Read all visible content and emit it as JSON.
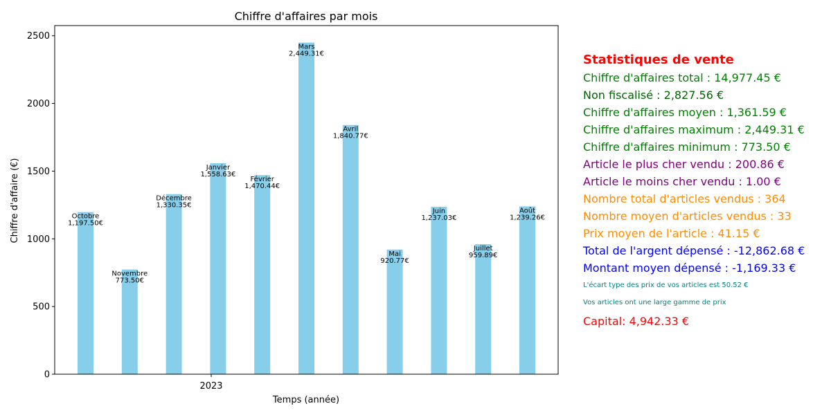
{
  "chart_data": {
    "type": "bar",
    "title": "Chiffre d'affaires par mois",
    "xlabel": "Temps (année)",
    "ylabel": "Chiffre d'affaire (€)",
    "x_tick_labels": [
      "2023"
    ],
    "ylim": [
      0,
      2575
    ],
    "yticks": [
      0,
      500,
      1000,
      1500,
      2000,
      2500
    ],
    "grid": false,
    "bar_color": "#87CEEB",
    "categories": [
      "Octobre",
      "Novembre",
      "Décembre",
      "Janvier",
      "Février",
      "Mars",
      "Avril",
      "Mai",
      "Juin",
      "Juillet",
      "Août"
    ],
    "values": [
      1197.5,
      773.5,
      1330.35,
      1558.63,
      1470.44,
      2449.31,
      1840.77,
      920.77,
      1237.03,
      959.89,
      1239.26
    ],
    "value_labels": [
      "1,197.50€",
      "773.50€",
      "1,330.35€",
      "1,558.63€",
      "1,470.44€",
      "2,449.31€",
      "1,840.77€",
      "920.77€",
      "1,237.03€",
      "959.89€",
      "1,239.26€"
    ]
  },
  "stats": {
    "title": "Statistiques de vente",
    "items": [
      {
        "text": "Chiffre d'affaires total : 14,977.45 €",
        "color": "#008000"
      },
      {
        "text": "Non fiscalisé : 2,827.56 €",
        "color": "#006400"
      },
      {
        "text": "Chiffre d'affaires moyen : 1,361.59 €",
        "color": "#008000"
      },
      {
        "text": "Chiffre d'affaires maximum : 2,449.31 €",
        "color": "#008000"
      },
      {
        "text": "Chiffre d'affaires minimum : 773.50 €",
        "color": "#008000"
      },
      {
        "text": "Article le plus cher vendu : 200.86 €",
        "color": "#800080"
      },
      {
        "text": "Article le moins cher vendu : 1.00 €",
        "color": "#800080"
      },
      {
        "text": "Nombre total d'articles vendus : 364",
        "color": "#FF8C00"
      },
      {
        "text": "Nombre moyen d'articles vendus : 33",
        "color": "#FF8C00"
      },
      {
        "text": "Prix moyen de l'article : 41.15 €",
        "color": "#FF8C00"
      },
      {
        "text": "Total de l'argent dépensé : -12,862.68 €",
        "color": "#0000FF"
      },
      {
        "text": "Montant moyen dépensé : -1,169.33 €",
        "color": "#0000FF"
      }
    ],
    "notes": [
      {
        "text": "L'écart type des prix de vos articles est 50.52 €",
        "color": "#008080"
      },
      {
        "text": "Vos articles ont une large gamme de prix",
        "color": "#008080"
      }
    ],
    "capital": {
      "text": "Capital: 4,942.33 €",
      "color": "#FF0000"
    },
    "title_color": "#FF0000"
  }
}
